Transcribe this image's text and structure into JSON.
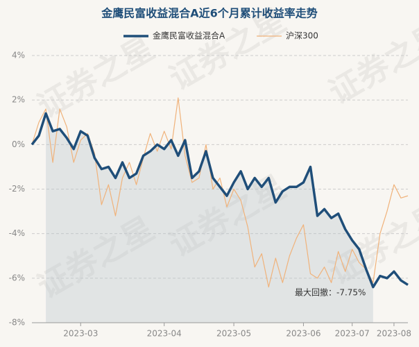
{
  "chart_data": {
    "type": "line",
    "title": "金鹰民富收益混合A近6个月累计收益率走势",
    "watermark": "证券之星",
    "annotation": "最大回撤：-7.75%",
    "categories": [
      null,
      null,
      null,
      null,
      null,
      null,
      null,
      "2023-03",
      null,
      null,
      null,
      null,
      null,
      null,
      null,
      null,
      null,
      null,
      null,
      "2023-04",
      null,
      null,
      null,
      null,
      null,
      null,
      null,
      null,
      null,
      "2023-05",
      null,
      null,
      null,
      null,
      null,
      null,
      null,
      null,
      null,
      "2023-06",
      null,
      null,
      null,
      null,
      null,
      null,
      "2023-07",
      null,
      null,
      null,
      null,
      null,
      "2023-08",
      null,
      null
    ],
    "series": [
      {
        "name": "金鹰民富收益混合A",
        "color": "#1f4e79",
        "width": 3.5,
        "values": [
          0,
          0.4,
          1.4,
          0.6,
          0.7,
          0.3,
          -0.2,
          0.6,
          0.4,
          -0.6,
          -1.1,
          -1.0,
          -1.5,
          -0.8,
          -1.5,
          -1.3,
          -0.5,
          -0.3,
          0.0,
          -0.2,
          0.2,
          -0.5,
          0.2,
          -1.5,
          -1.2,
          -0.3,
          -1.5,
          -1.9,
          -2.3,
          -1.7,
          -1.2,
          -2.0,
          -1.5,
          -1.9,
          -1.5,
          -2.6,
          -2.1,
          -1.9,
          -1.9,
          -1.7,
          -1.0,
          -3.2,
          -2.9,
          -3.3,
          -3.1,
          -3.8,
          -4.3,
          -4.7,
          -5.6,
          -6.4,
          -5.9,
          -6.0,
          -5.7,
          -6.1,
          -6.3
        ]
      },
      {
        "name": "沪深300",
        "color": "#f0b27a",
        "width": 1.2,
        "values": [
          0,
          1.0,
          1.6,
          -0.8,
          1.6,
          0.8,
          -0.8,
          0.2,
          0.5,
          -0.4,
          -2.7,
          -1.8,
          -3.2,
          -1.5,
          -0.8,
          -1.8,
          -0.6,
          0.5,
          -0.3,
          0.6,
          -0.2,
          2.1,
          -0.5,
          -1.7,
          -1.5,
          0.0,
          -2.0,
          -1.5,
          -2.8,
          -2.0,
          -2.5,
          -3.7,
          -5.5,
          -4.9,
          -6.4,
          -5.1,
          -6.2,
          -5.0,
          -4.2,
          -3.6,
          -5.8,
          -6.0,
          -5.5,
          -6.2,
          -4.8,
          -5.7,
          -4.7,
          -5.3,
          -5.6,
          -6.2,
          -4.0,
          -3.0,
          -1.8,
          -2.4,
          -2.3
        ]
      }
    ],
    "ylim": [
      -8,
      4
    ],
    "yticks": [
      {
        "value": -8,
        "label": "-8%"
      },
      {
        "value": -6,
        "label": "-6%"
      },
      {
        "value": -4,
        "label": "-4%"
      },
      {
        "value": -2,
        "label": "-2%"
      },
      {
        "value": 0,
        "label": "0%"
      },
      {
        "value": 2,
        "label": "2%"
      },
      {
        "value": 4,
        "label": "4%"
      }
    ],
    "grid": true
  }
}
